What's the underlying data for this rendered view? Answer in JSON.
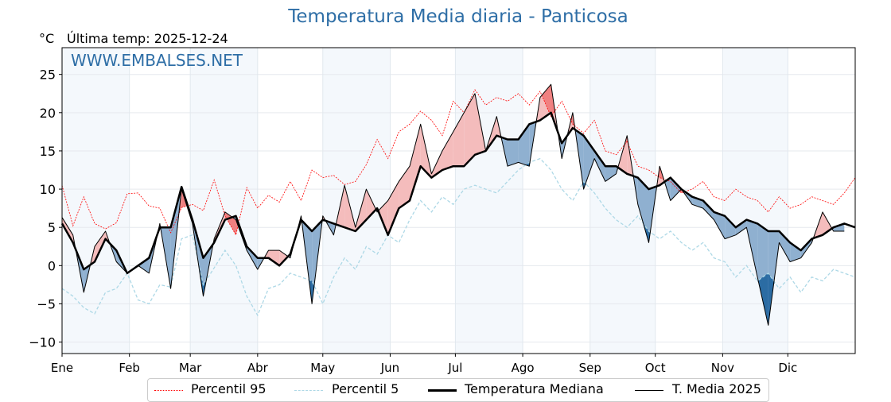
{
  "title": "Temperatura Media diaria - Panticosa",
  "unit_label": "°C",
  "last_temp_label": "Última temp: 2025-12-24",
  "watermark": "WWW.EMBALSES.NET",
  "legend": [
    {
      "label": "Percentil 95",
      "color": "#ff0000",
      "style": "dotted"
    },
    {
      "label": "Percentil 5",
      "color": "#add8e6",
      "style": "dashed"
    },
    {
      "label": "Temperatura Mediana",
      "color": "#000000",
      "style": "thick"
    },
    {
      "label": "T. Media 2025",
      "color": "#000000",
      "style": "thin"
    }
  ],
  "colors": {
    "above_median": "#f4bcbc",
    "above_p95": "#f08080",
    "below_median": "#8fb0d0",
    "below_p5": "#2b6ca3",
    "band": "#f4f8fc",
    "title": "#2e6ea6"
  },
  "chart_data": {
    "type": "line",
    "title": "Temperatura Media diaria - Panticosa",
    "ylabel": "°C",
    "ylim": [
      -11.5,
      28.5
    ],
    "yticks": [
      25,
      20,
      15,
      10,
      5,
      0,
      -5,
      -10
    ],
    "ytick_labels": [
      "25",
      "20",
      "15",
      "10",
      "5",
      "0",
      "−5",
      "−10"
    ],
    "xlim_days": [
      0,
      365
    ],
    "month_ticks": [
      {
        "label": "Ene",
        "day": 0
      },
      {
        "label": "Feb",
        "day": 31
      },
      {
        "label": "Mar",
        "day": 59
      },
      {
        "label": "Abr",
        "day": 90
      },
      {
        "label": "May",
        "day": 120
      },
      {
        "label": "Jun",
        "day": 151
      },
      {
        "label": "Jul",
        "day": 181
      },
      {
        "label": "Ago",
        "day": 212
      },
      {
        "label": "Sep",
        "day": 243
      },
      {
        "label": "Oct",
        "day": 273
      },
      {
        "label": "Nov",
        "day": 304
      },
      {
        "label": "Dic",
        "day": 334
      }
    ],
    "grid": true,
    "legend_position": "bottom-center",
    "x_step_days": 5,
    "series": [
      {
        "name": "Percentil 95",
        "values": [
          10.5,
          5.2,
          9.0,
          5.5,
          4.8,
          5.6,
          9.4,
          9.5,
          7.8,
          7.5,
          4.3,
          7.6,
          8.0,
          7.2,
          11.2,
          6.5,
          4.0,
          10.2,
          7.5,
          9.2,
          8.3,
          11.0,
          8.5,
          12.5,
          11.5,
          11.8,
          10.6,
          11.0,
          13.2,
          16.5,
          14.0,
          17.5,
          18.5,
          20.2,
          19.0,
          17.0,
          21.5,
          20.0,
          23.0,
          21.0,
          22.0,
          21.5,
          22.5,
          21.0,
          22.8,
          19.5,
          21.5,
          18.5,
          17.3,
          19.0,
          15.0,
          14.5,
          16.2,
          13.0,
          12.5,
          11.5,
          11.0,
          9.5,
          10.0,
          11.0,
          9.0,
          8.5,
          10.0,
          9.0,
          8.5,
          7.0,
          9.0,
          7.5,
          8.0,
          9.0,
          8.5,
          8.0,
          9.5,
          11.5
        ]
      },
      {
        "name": "Percentil 5",
        "values": [
          -3.0,
          -4.0,
          -5.5,
          -6.3,
          -3.5,
          -3.0,
          -1.0,
          -4.5,
          -5.0,
          -2.5,
          -2.8,
          3.5,
          4.0,
          -2.5,
          -0.3,
          2.0,
          0.0,
          -4.0,
          -6.5,
          -3.0,
          -2.5,
          -1.0,
          -1.5,
          -2.0,
          -5.0,
          -1.5,
          1.0,
          -0.5,
          2.5,
          1.5,
          4.0,
          3.0,
          6.0,
          8.5,
          7.0,
          9.0,
          8.0,
          10.0,
          10.5,
          10.0,
          9.5,
          11.0,
          12.5,
          13.5,
          14.0,
          12.5,
          10.0,
          8.5,
          11.0,
          9.5,
          7.5,
          6.0,
          5.0,
          6.5,
          4.5,
          3.5,
          4.5,
          3.0,
          2.0,
          3.0,
          1.0,
          0.5,
          -1.5,
          0.0,
          -2.0,
          -1.0,
          -3.0,
          -1.5,
          -3.5,
          -1.5,
          -2.0,
          -0.5,
          -1.0,
          -1.5
        ]
      },
      {
        "name": "Temperatura Mediana",
        "values": [
          5.5,
          3.0,
          -0.5,
          0.5,
          3.5,
          2.0,
          -1.0,
          0.0,
          1.0,
          5.0,
          5.0,
          10.3,
          6.0,
          1.0,
          3.0,
          6.0,
          6.5,
          2.5,
          1.0,
          1.0,
          0.0,
          1.5,
          6.0,
          4.5,
          6.0,
          5.5,
          5.0,
          4.5,
          6.0,
          7.5,
          4.0,
          7.5,
          8.5,
          13.0,
          11.5,
          12.5,
          13.0,
          13.0,
          14.5,
          15.0,
          17.0,
          16.5,
          16.5,
          18.5,
          19.0,
          20.0,
          16.0,
          18.0,
          17.0,
          15.0,
          13.0,
          13.0,
          12.0,
          11.5,
          10.0,
          10.5,
          11.5,
          10.0,
          9.0,
          8.5,
          7.0,
          6.5,
          5.0,
          6.0,
          5.5,
          4.5,
          4.5,
          3.0,
          2.0,
          3.5,
          4.0,
          5.0,
          5.5,
          5.0
        ]
      },
      {
        "name": "T. Media 2025",
        "values": [
          6.3,
          4.0,
          -3.5,
          2.5,
          4.5,
          0.5,
          -1.0,
          0.0,
          -1.0,
          5.5,
          -3.0,
          10.0,
          5.5,
          -4.0,
          3.5,
          7.0,
          6.0,
          2.0,
          -0.5,
          2.0,
          2.0,
          1.0,
          6.5,
          -5.0,
          6.5,
          4.0,
          10.5,
          5.0,
          10.0,
          7.0,
          8.5,
          11.0,
          13.0,
          18.5,
          12.0,
          15.0,
          17.5,
          20.0,
          22.5,
          15.0,
          19.5,
          13.0,
          13.5,
          13.0,
          22.0,
          23.7,
          14.0,
          20.0,
          10.0,
          14.0,
          11.0,
          12.0,
          17.0,
          8.0,
          3.0,
          13.0,
          8.5,
          10.0,
          8.0,
          7.5,
          6.0,
          3.5,
          4.0,
          5.0,
          -1.5,
          -7.8,
          3.0,
          0.5,
          1.0,
          3.0,
          7.0,
          4.5,
          4.5
        ]
      }
    ]
  }
}
